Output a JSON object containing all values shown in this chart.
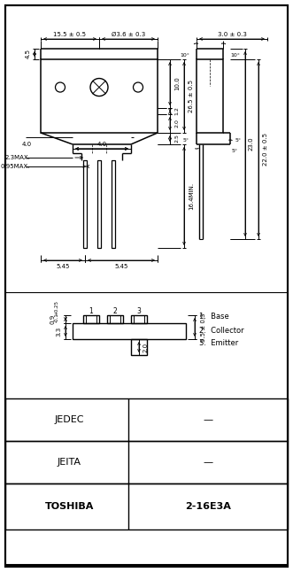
{
  "bg_color": "#ffffff",
  "line_color": "#000000",
  "text_color": "#000000",
  "fig_width": 3.31,
  "fig_height": 6.46,
  "dpi": 100,
  "table_rows": [
    {
      "label": "JEDEC",
      "value": "—"
    },
    {
      "label": "JEITA",
      "value": "—"
    },
    {
      "label": "TOSHIBA",
      "value": "2-16E3A"
    }
  ]
}
